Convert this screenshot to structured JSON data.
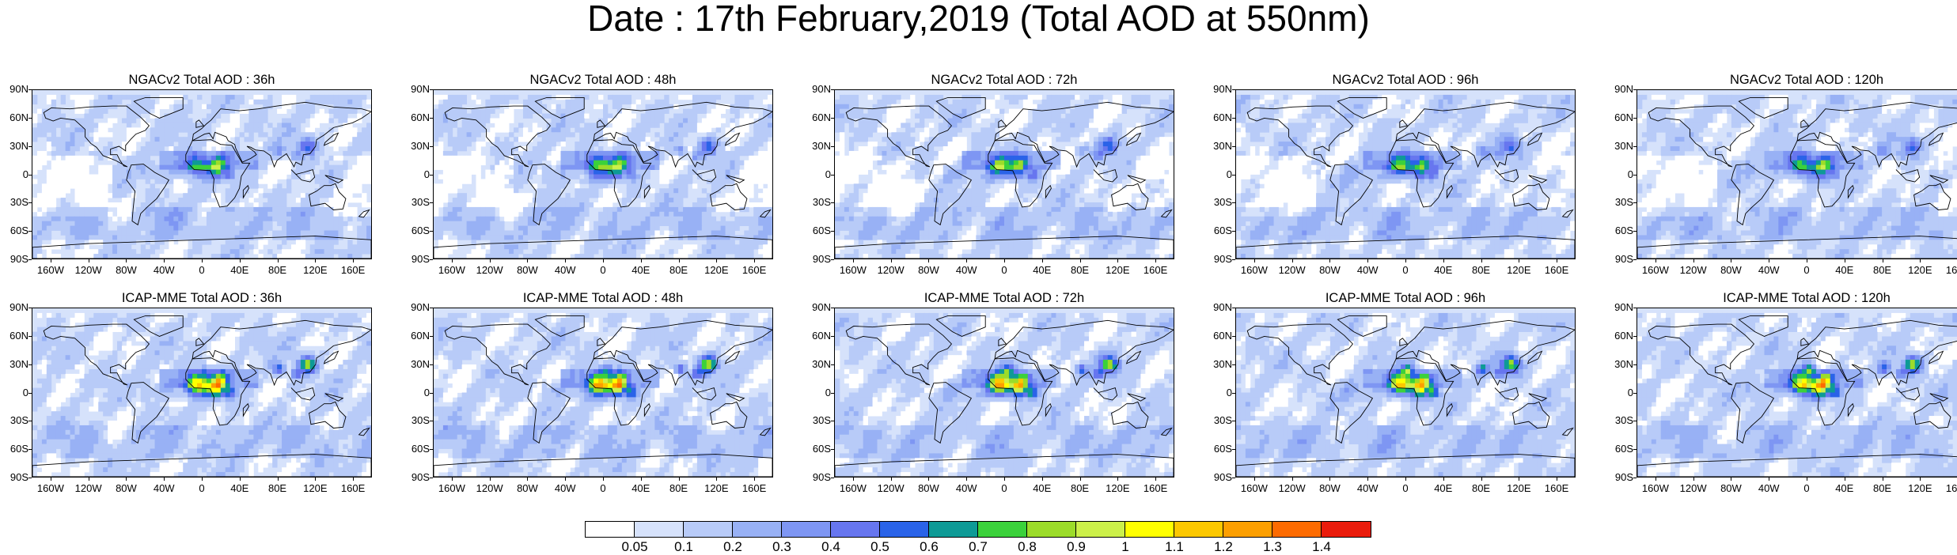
{
  "title": "Date : 17th February,2019 (Total AOD at 550nm)",
  "panels": [
    {
      "title": "NGACv2 Total AOD : 36h",
      "model": "NGACv2",
      "hours": 36
    },
    {
      "title": "NGACv2 Total AOD : 48h",
      "model": "NGACv2",
      "hours": 48
    },
    {
      "title": "NGACv2 Total AOD : 72h",
      "model": "NGACv2",
      "hours": 72
    },
    {
      "title": "NGACv2 Total AOD : 96h",
      "model": "NGACv2",
      "hours": 96
    },
    {
      "title": "NGACv2 Total AOD : 120h",
      "model": "NGACv2",
      "hours": 120
    },
    {
      "title": "ICAP-MME Total AOD : 36h",
      "model": "ICAP-MME",
      "hours": 36
    },
    {
      "title": "ICAP-MME Total AOD : 48h",
      "model": "ICAP-MME",
      "hours": 48
    },
    {
      "title": "ICAP-MME Total AOD : 72h",
      "model": "ICAP-MME",
      "hours": 72
    },
    {
      "title": "ICAP-MME Total AOD : 96h",
      "model": "ICAP-MME",
      "hours": 96
    },
    {
      "title": "ICAP-MME Total AOD : 120h",
      "model": "ICAP-MME",
      "hours": 120
    }
  ],
  "lat_ticks": [
    "90N",
    "60N",
    "30N",
    "0",
    "30S",
    "60S",
    "90S"
  ],
  "lat_values": [
    90,
    60,
    30,
    0,
    -30,
    -60,
    -90
  ],
  "lon_ticks": [
    "160W",
    "120W",
    "80W",
    "40W",
    "0",
    "40E",
    "80E",
    "120E",
    "160E"
  ],
  "lon_values": [
    -160,
    -120,
    -80,
    -40,
    0,
    40,
    80,
    120,
    160
  ],
  "colorbar": {
    "labels": [
      "0.05",
      "0.1",
      "0.2",
      "0.3",
      "0.4",
      "0.5",
      "0.6",
      "0.7",
      "0.8",
      "0.9",
      "1",
      "1.1",
      "1.2",
      "1.3",
      "1.4"
    ],
    "colors": [
      "#ffffff",
      "#d6e2fb",
      "#b8cbf8",
      "#98b1f5",
      "#7e96f3",
      "#6776ef",
      "#2a63e8",
      "#0e9a96",
      "#3bd13b",
      "#9cdc2a",
      "#ccf04a",
      "#ffff00",
      "#fcc800",
      "#fc9f00",
      "#fd6b00",
      "#ea1c0c"
    ]
  }
}
